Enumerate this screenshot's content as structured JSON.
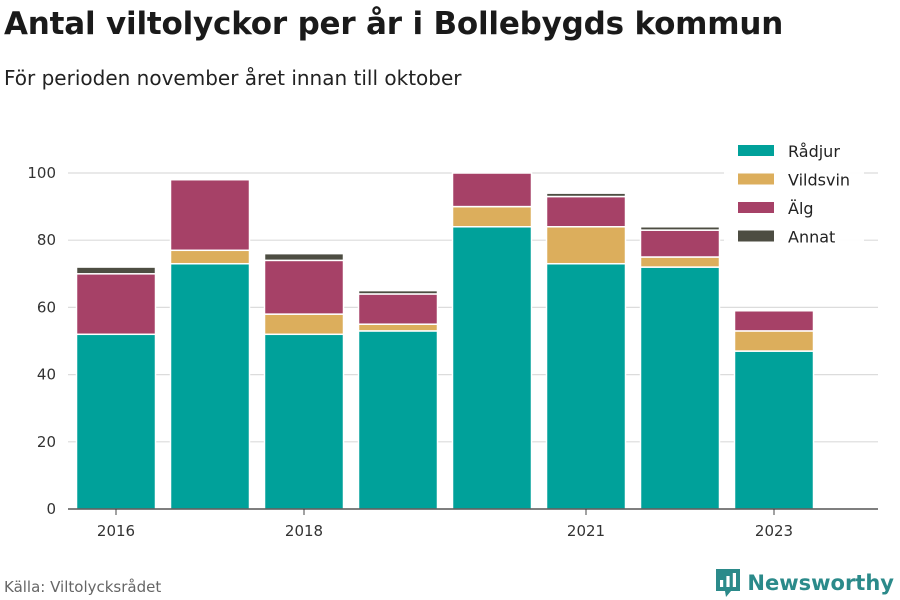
{
  "header": {
    "title": "Antal viltolyckor per år i Bollebygds kommun",
    "subtitle": "För perioden november året innan till oktober"
  },
  "chart_data": {
    "type": "bar",
    "stacked": true,
    "categories": [
      "2016",
      "2017",
      "2018",
      "2019",
      "2020",
      "2021",
      "2022",
      "2023"
    ],
    "x_tick_labels": [
      "2016",
      "",
      "2018",
      "",
      "",
      "2021",
      "",
      "2023"
    ],
    "series": [
      {
        "name": "Rådjur",
        "color": "#00a19a",
        "values": [
          52,
          73,
          52,
          53,
          84,
          73,
          72,
          47
        ]
      },
      {
        "name": "Vildsvin",
        "color": "#dcae5c",
        "values": [
          0,
          4,
          6,
          2,
          6,
          11,
          3,
          6
        ]
      },
      {
        "name": "Älg",
        "color": "#a64167",
        "values": [
          18,
          21,
          16,
          9,
          10,
          9,
          8,
          6
        ]
      },
      {
        "name": "Annat",
        "color": "#4d4d42",
        "values": [
          2,
          0,
          2,
          1,
          0,
          1,
          1,
          0
        ]
      }
    ],
    "ylim": [
      0,
      100
    ],
    "yticks": [
      0,
      20,
      40,
      60,
      80,
      100
    ],
    "grid": true,
    "legend_position": "top-right",
    "xlabel": "",
    "ylabel": ""
  },
  "footer": {
    "source": "Källa: Viltolycksrådet",
    "brand": "Newsworthy",
    "brand_icon": "newsworthy-logo-icon",
    "brand_color": "#2b8a8a"
  }
}
